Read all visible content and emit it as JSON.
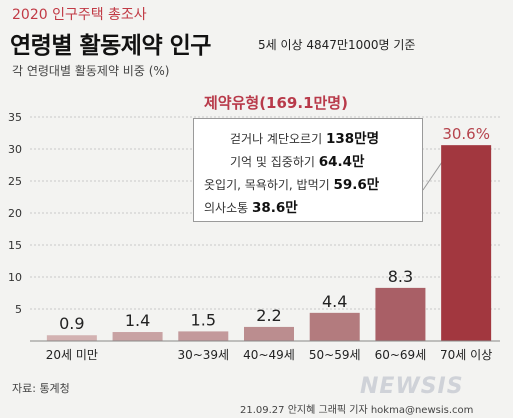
{
  "header": {
    "survey": "2020 인구주택 총조사",
    "title": "연령별 활동제약 인구",
    "basis": "5세 이상 4847만1000명 기준",
    "subtitle": "각 연령대별 활동제약 비중 (%)"
  },
  "callout": {
    "title": "제약유형(169.1만명)",
    "lines": [
      {
        "label": "걷거나 계단오르기",
        "value": "138만명"
      },
      {
        "label": "기억 및 집중하기",
        "value": "64.4만"
      },
      {
        "label": "옷입기, 목욕하기, 밥먹기",
        "value": "59.6만"
      },
      {
        "label": "의사소통",
        "value": "38.6만"
      }
    ]
  },
  "chart_data": {
    "type": "bar",
    "categories": [
      "20세 미만",
      "",
      "30~39세",
      "40~49세",
      "50~59세",
      "60~69세",
      "70세 이상"
    ],
    "values": [
      0.9,
      1.4,
      1.5,
      2.2,
      4.4,
      8.3,
      30.6
    ],
    "value_labels": [
      "0.9",
      "1.4",
      "1.5",
      "2.2",
      "4.4",
      "8.3",
      "30.6%"
    ],
    "yticks": [
      5,
      10,
      15,
      20,
      25,
      30,
      35
    ],
    "ylim": [
      0,
      35
    ],
    "grid": true,
    "colors": [
      "#d3b2b2",
      "#c8a2a3",
      "#c3999b",
      "#bb8d8f",
      "#b37b7e",
      "#a95f66",
      "#a2373f"
    ],
    "highlight_label_color": "#b5434c"
  },
  "footer": {
    "source": "자료: 통계청",
    "logo": "NEWSIS",
    "credit": "21.09.27 안지혜 그래픽 기자 hokma@newsis.com"
  }
}
